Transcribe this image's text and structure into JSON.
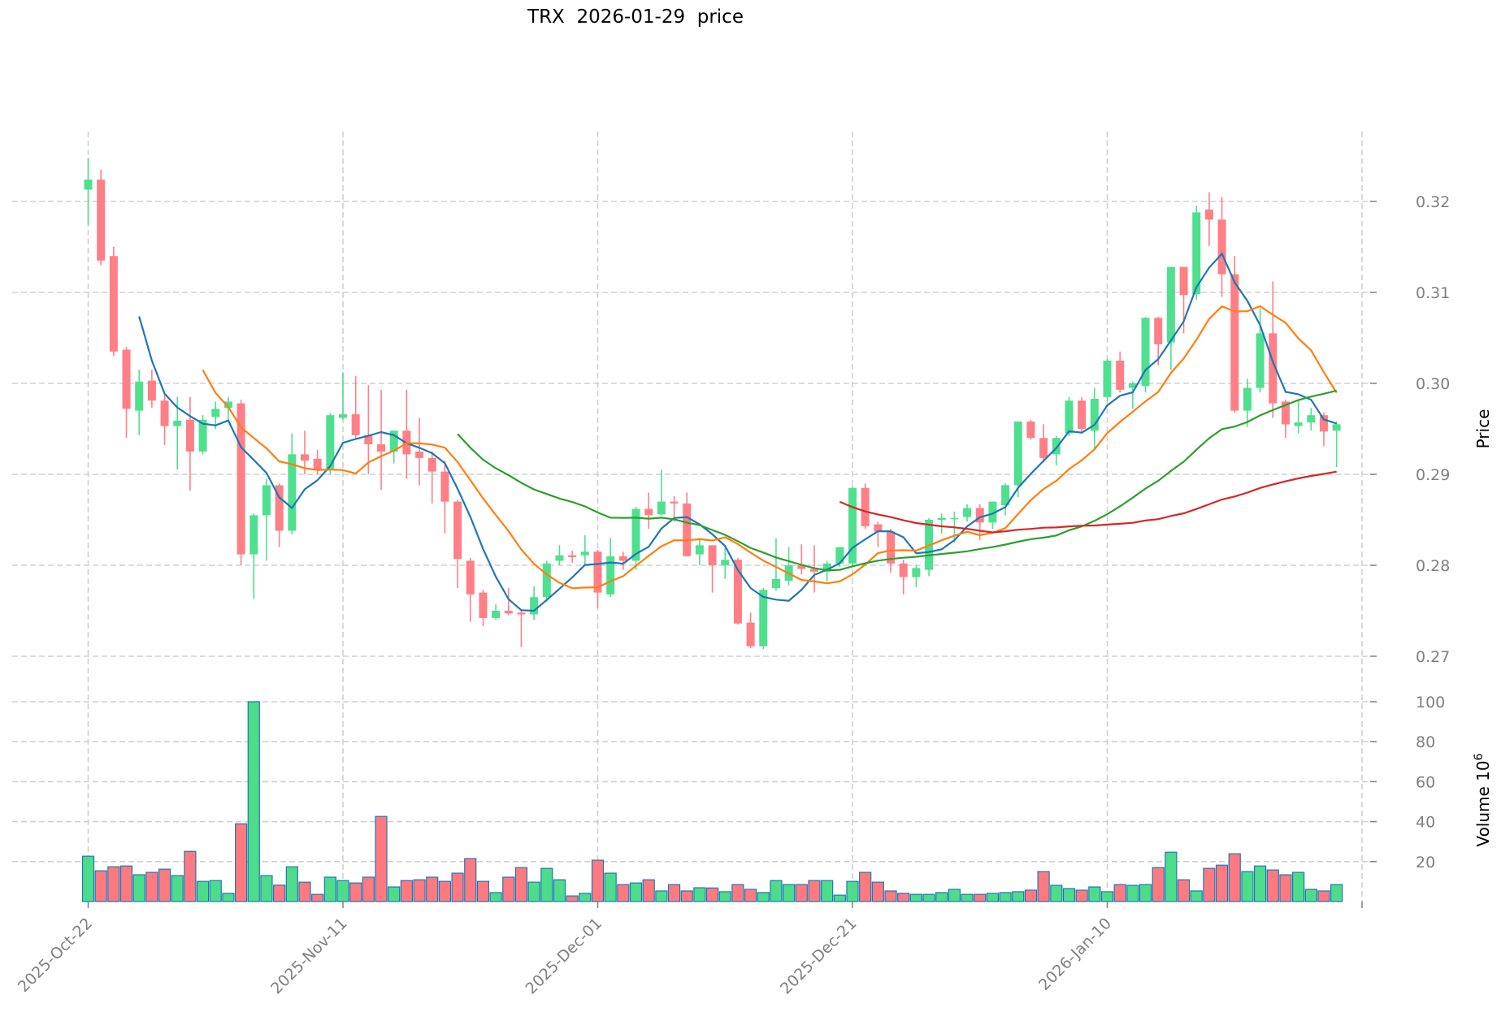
{
  "title": "TRX  2026-01-29  price",
  "colors": {
    "up_candle": "#4fe08f",
    "down_candle": "#ff7f86",
    "up_volume": "#4ddc8a",
    "down_volume": "#ff7a80",
    "volume_edge": "#1f77b4",
    "grid": "#d0d0d0",
    "tick_text": "#808080"
  },
  "chart_data": {
    "type": "candlestick",
    "title": "TRX  2026-01-29  price",
    "ylabel": "Price",
    "volume_label": "Volume",
    "volume_exponent": "6",
    "price_ylim": [
      0.266,
      0.3268
    ],
    "price_ticks": [
      "0.27",
      "0.28",
      "0.29",
      "0.30",
      "0.31",
      "0.32"
    ],
    "volume_ylim": [
      0,
      100
    ],
    "volume_ticks": [
      "20",
      "40",
      "60",
      "80",
      "100"
    ],
    "x_tick_labels": [
      {
        "index": 0,
        "label": "2025-Oct-22"
      },
      {
        "index": 20,
        "label": "2025-Nov-11"
      },
      {
        "index": 40,
        "label": "2025-Dec-01"
      },
      {
        "index": 60,
        "label": "2025-Dec-21"
      },
      {
        "index": 80,
        "label": "2026-Jan-10"
      },
      {
        "index": 100,
        "label": ""
      }
    ],
    "grid": true,
    "moving_averages": [
      {
        "period": 5,
        "color": "#1f77b4"
      },
      {
        "period": 10,
        "color": "#ff7f0e"
      },
      {
        "period": 30,
        "color": "#2ca02c"
      },
      {
        "period": 60,
        "color": "#d62728"
      }
    ],
    "ohlcv": [
      [
        0.3213,
        0.3248,
        0.3174,
        0.3224,
        22.7
      ],
      [
        0.3224,
        0.3235,
        0.313,
        0.3135,
        15.4
      ],
      [
        0.314,
        0.315,
        0.303,
        0.3035,
        17.4
      ],
      [
        0.3037,
        0.304,
        0.294,
        0.2972,
        17.8
      ],
      [
        0.297,
        0.3015,
        0.2943,
        0.3002,
        13.4
      ],
      [
        0.3003,
        0.3015,
        0.2973,
        0.2981,
        14.6
      ],
      [
        0.2981,
        0.299,
        0.2932,
        0.2953,
        16.2
      ],
      [
        0.2953,
        0.2985,
        0.2905,
        0.2959,
        13.0
      ],
      [
        0.296,
        0.2985,
        0.2882,
        0.2925,
        25.1
      ],
      [
        0.2925,
        0.2965,
        0.2922,
        0.296,
        10.1
      ],
      [
        0.2963,
        0.298,
        0.295,
        0.2972,
        10.5
      ],
      [
        0.2973,
        0.2985,
        0.296,
        0.298,
        4.1
      ],
      [
        0.2978,
        0.2982,
        0.28,
        0.2812,
        38.9
      ],
      [
        0.2812,
        0.2857,
        0.2763,
        0.2855,
        100.0
      ],
      [
        0.2855,
        0.2895,
        0.2805,
        0.2888,
        13.0
      ],
      [
        0.2888,
        0.289,
        0.282,
        0.2838,
        8.2
      ],
      [
        0.2838,
        0.2945,
        0.2834,
        0.2922,
        17.4
      ],
      [
        0.2922,
        0.2948,
        0.29,
        0.2915,
        9.7
      ],
      [
        0.2917,
        0.2927,
        0.29,
        0.2905,
        3.6
      ],
      [
        0.2906,
        0.2967,
        0.29,
        0.2965,
        12.2
      ],
      [
        0.2962,
        0.3012,
        0.296,
        0.2966,
        10.5
      ],
      [
        0.2966,
        0.3008,
        0.294,
        0.2943,
        9.3
      ],
      [
        0.2943,
        0.2998,
        0.29,
        0.2933,
        12.2
      ],
      [
        0.2933,
        0.2993,
        0.2883,
        0.2925,
        42.6
      ],
      [
        0.2925,
        0.2948,
        0.2912,
        0.2948,
        7.3
      ],
      [
        0.2948,
        0.2993,
        0.2895,
        0.2922,
        10.5
      ],
      [
        0.2925,
        0.2962,
        0.2888,
        0.2918,
        10.9
      ],
      [
        0.2918,
        0.2925,
        0.2868,
        0.2903,
        12.2
      ],
      [
        0.2903,
        0.2915,
        0.2835,
        0.287,
        10.1
      ],
      [
        0.287,
        0.2872,
        0.2775,
        0.2807,
        14.2
      ],
      [
        0.2805,
        0.2808,
        0.2738,
        0.2768,
        21.5
      ],
      [
        0.277,
        0.2773,
        0.2733,
        0.2742,
        10.1
      ],
      [
        0.2742,
        0.2757,
        0.274,
        0.275,
        4.5
      ],
      [
        0.275,
        0.2775,
        0.2745,
        0.2747,
        12.2
      ],
      [
        0.2748,
        0.2752,
        0.271,
        0.2746,
        17.0
      ],
      [
        0.2746,
        0.2777,
        0.274,
        0.2765,
        9.7
      ],
      [
        0.2765,
        0.2805,
        0.276,
        0.2802,
        16.6
      ],
      [
        0.2805,
        0.2822,
        0.28,
        0.2811,
        10.9
      ],
      [
        0.2811,
        0.2816,
        0.2803,
        0.2809,
        2.8
      ],
      [
        0.2811,
        0.2833,
        0.28,
        0.2815,
        4.1
      ],
      [
        0.2815,
        0.2817,
        0.2753,
        0.277,
        20.7
      ],
      [
        0.2768,
        0.283,
        0.2765,
        0.281,
        14.2
      ],
      [
        0.281,
        0.2815,
        0.2795,
        0.2805,
        8.5
      ],
      [
        0.2805,
        0.2864,
        0.2795,
        0.2862,
        9.3
      ],
      [
        0.2862,
        0.288,
        0.284,
        0.2855,
        10.9
      ],
      [
        0.2856,
        0.2905,
        0.2855,
        0.287,
        5.3
      ],
      [
        0.287,
        0.2876,
        0.2848,
        0.2868,
        8.5
      ],
      [
        0.2868,
        0.288,
        0.281,
        0.281,
        5.3
      ],
      [
        0.2812,
        0.283,
        0.28,
        0.2822,
        6.9
      ],
      [
        0.2822,
        0.2822,
        0.277,
        0.28,
        6.8
      ],
      [
        0.28,
        0.2822,
        0.2785,
        0.2806,
        4.9
      ],
      [
        0.2806,
        0.2808,
        0.2735,
        0.2736,
        8.5
      ],
      [
        0.2737,
        0.2748,
        0.2709,
        0.2711,
        6.1
      ],
      [
        0.2711,
        0.2775,
        0.2708,
        0.2773,
        4.5
      ],
      [
        0.2775,
        0.283,
        0.2772,
        0.2785,
        10.5
      ],
      [
        0.2783,
        0.282,
        0.2778,
        0.28,
        8.5
      ],
      [
        0.28,
        0.2823,
        0.279,
        0.2796,
        8.5
      ],
      [
        0.2796,
        0.2822,
        0.277,
        0.2793,
        10.5
      ],
      [
        0.2793,
        0.2805,
        0.2782,
        0.2802,
        10.5
      ],
      [
        0.2802,
        0.282,
        0.2798,
        0.282,
        3.2
      ],
      [
        0.2802,
        0.2887,
        0.28,
        0.2885,
        10.1
      ],
      [
        0.2885,
        0.289,
        0.284,
        0.2843,
        14.6
      ],
      [
        0.2845,
        0.2848,
        0.282,
        0.2837,
        9.7
      ],
      [
        0.2837,
        0.284,
        0.2792,
        0.2802,
        5.3
      ],
      [
        0.2802,
        0.2806,
        0.2768,
        0.2787,
        4.1
      ],
      [
        0.2787,
        0.28,
        0.2776,
        0.2797,
        3.6
      ],
      [
        0.2795,
        0.2852,
        0.2788,
        0.285,
        3.6
      ],
      [
        0.285,
        0.2857,
        0.2835,
        0.2852,
        4.5
      ],
      [
        0.2851,
        0.2859,
        0.2825,
        0.2852,
        6.1
      ],
      [
        0.2853,
        0.2867,
        0.2848,
        0.2863,
        3.6
      ],
      [
        0.2863,
        0.2867,
        0.2828,
        0.2847,
        3.6
      ],
      [
        0.2847,
        0.287,
        0.284,
        0.287,
        4.1
      ],
      [
        0.2866,
        0.289,
        0.2855,
        0.2888,
        4.5
      ],
      [
        0.2888,
        0.2958,
        0.2875,
        0.2958,
        4.9
      ],
      [
        0.2958,
        0.296,
        0.2938,
        0.294,
        5.7
      ],
      [
        0.294,
        0.2955,
        0.2913,
        0.2918,
        15.0
      ],
      [
        0.2922,
        0.2942,
        0.291,
        0.294,
        8.1
      ],
      [
        0.2945,
        0.2985,
        0.2942,
        0.2981,
        6.5
      ],
      [
        0.2981,
        0.2985,
        0.2945,
        0.295,
        5.7
      ],
      [
        0.2948,
        0.2995,
        0.2928,
        0.2983,
        7.3
      ],
      [
        0.2985,
        0.3027,
        0.298,
        0.3025,
        4.9
      ],
      [
        0.3025,
        0.3035,
        0.299,
        0.2993,
        8.5
      ],
      [
        0.2995,
        0.3002,
        0.2972,
        0.3,
        8.1
      ],
      [
        0.2997,
        0.3073,
        0.299,
        0.3072,
        8.5
      ],
      [
        0.3072,
        0.3073,
        0.302,
        0.3043,
        17.0
      ],
      [
        0.3045,
        0.3128,
        0.3015,
        0.3128,
        24.7
      ],
      [
        0.3128,
        0.3128,
        0.3055,
        0.3097,
        10.9
      ],
      [
        0.3098,
        0.3195,
        0.3092,
        0.3188,
        5.3
      ],
      [
        0.3191,
        0.321,
        0.3151,
        0.318,
        16.6
      ],
      [
        0.318,
        0.3205,
        0.3095,
        0.312,
        18.2
      ],
      [
        0.312,
        0.314,
        0.2968,
        0.297,
        23.9
      ],
      [
        0.297,
        0.3005,
        0.2952,
        0.2995,
        15.0
      ],
      [
        0.2995,
        0.3082,
        0.299,
        0.3055,
        17.8
      ],
      [
        0.3055,
        0.3112,
        0.2962,
        0.2978,
        15.8
      ],
      [
        0.298,
        0.2982,
        0.294,
        0.2955,
        13.4
      ],
      [
        0.2953,
        0.2982,
        0.2945,
        0.2957,
        14.6
      ],
      [
        0.2957,
        0.2973,
        0.2948,
        0.2965,
        6.1
      ],
      [
        0.2965,
        0.2968,
        0.2931,
        0.2947,
        5.3
      ],
      [
        0.2948,
        0.2958,
        0.2908,
        0.2955,
        8.5
      ]
    ],
    "ohlcv_columns": [
      "open",
      "high",
      "low",
      "close",
      "volume_millions"
    ]
  }
}
